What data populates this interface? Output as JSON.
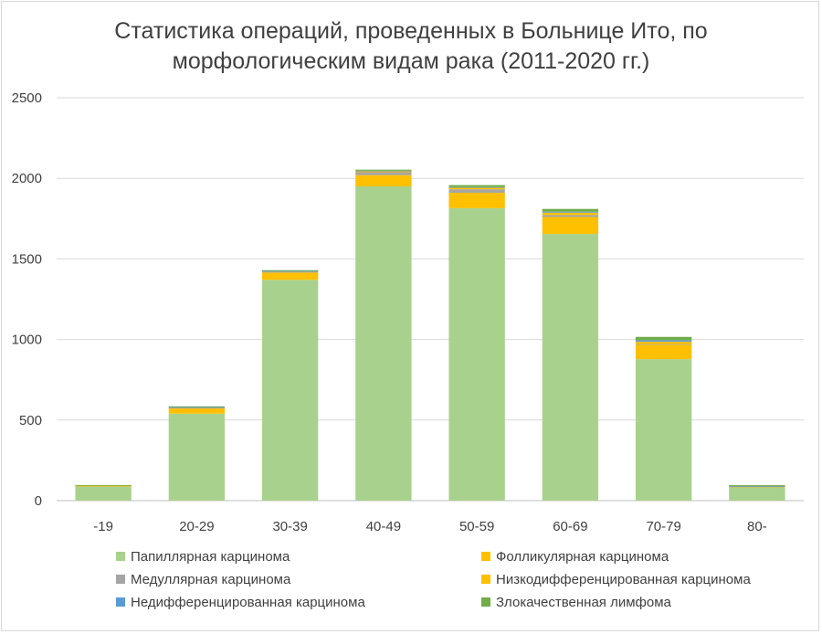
{
  "chart_data": {
    "type": "bar",
    "stacked": true,
    "title_lines": [
      "Статистика операций, проведенных в Больнице Ито, по",
      "морфологическим видам рака (2011-2020 гг.)"
    ],
    "categories": [
      "-19",
      "20-29",
      "30-39",
      "40-49",
      "50-59",
      "60-69",
      "70-79",
      "80-"
    ],
    "ylim": [
      0,
      2500
    ],
    "yticks": [
      0,
      500,
      1000,
      1500,
      2000,
      2500
    ],
    "grid": true,
    "legend_position": "bottom",
    "series": [
      {
        "name": "Папиллярная карцинома",
        "color": "#a9d18e",
        "values": [
          88,
          540,
          1370,
          1950,
          1815,
          1655,
          878,
          82
        ]
      },
      {
        "name": "Фолликулярная карцинома",
        "color": "#ffc000",
        "values": [
          6,
          32,
          45,
          70,
          95,
          105,
          90,
          5
        ]
      },
      {
        "name": "Медуллярная карцинома",
        "color": "#a5a5a5",
        "values": [
          1,
          4,
          6,
          18,
          22,
          12,
          4,
          1
        ]
      },
      {
        "name": "Низкодифференцированная карцинома",
        "color": "#ffc000",
        "values": [
          1,
          4,
          4,
          8,
          10,
          15,
          14,
          1
        ]
      },
      {
        "name": "Недифференцированная карцинома",
        "color": "#5b9bd5",
        "values": [
          0,
          1,
          1,
          2,
          4,
          6,
          10,
          1
        ]
      },
      {
        "name": "Злокачественная лимфома",
        "color": "#70ad47",
        "values": [
          1,
          4,
          4,
          6,
          12,
          17,
          20,
          6
        ]
      }
    ]
  }
}
